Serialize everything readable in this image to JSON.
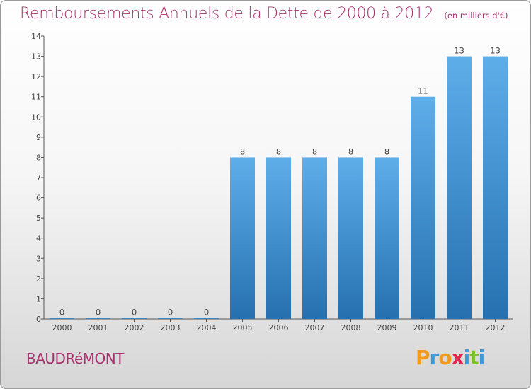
{
  "header": {
    "title": "Remboursements Annuels de la Dette de 2000 à 2012",
    "unit": "(en milliers d'€)"
  },
  "footer": {
    "place": "BAUDRéMONT",
    "brand": "Proxiti"
  },
  "colors": {
    "title": "#a8326e",
    "bar_top": "#5eaeea",
    "bar_bottom": "#2670b0",
    "brand_letters": [
      "#f39a1e",
      "#3a9bd8",
      "#f39a1e",
      "#e2264d",
      "#3a9bd8",
      "#7bbf2a",
      "#3a9bd8"
    ]
  },
  "chart_data": {
    "type": "bar",
    "categories": [
      "2000",
      "2001",
      "2002",
      "2003",
      "2004",
      "2005",
      "2006",
      "2007",
      "2008",
      "2009",
      "2010",
      "2011",
      "2012"
    ],
    "values": [
      0,
      0,
      0,
      0,
      0,
      8,
      8,
      8,
      8,
      8,
      11,
      13,
      13
    ],
    "title": "Remboursements Annuels de la Dette de 2000 à 2012",
    "ylim": [
      0,
      14
    ],
    "yticks": [
      0,
      1,
      2,
      3,
      4,
      5,
      6,
      7,
      8,
      9,
      10,
      11,
      12,
      13,
      14
    ],
    "grid": false,
    "legend": "none"
  }
}
